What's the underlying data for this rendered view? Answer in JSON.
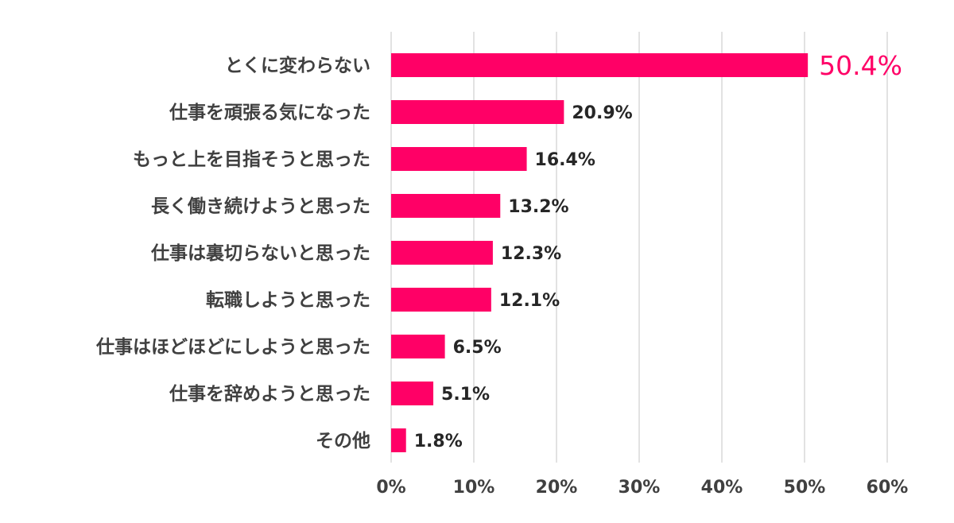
{
  "chart_data": {
    "type": "bar",
    "orientation": "horizontal",
    "categories": [
      "とくに変わらない",
      "仕事を頑張る気になった",
      "もっと上を目指そうと思った",
      "長く働き続けようと思った",
      "仕事は裏切らないと思った",
      "転職しようと思った",
      "仕事はほどほどにしようと思った",
      "仕事を辞めようと思った",
      "その他"
    ],
    "values": [
      50.4,
      20.9,
      16.4,
      13.2,
      12.3,
      12.1,
      6.5,
      5.1,
      1.8
    ],
    "value_labels": [
      "50.4%",
      "20.9%",
      "16.4%",
      "13.2%",
      "12.3%",
      "12.1%",
      "6.5%",
      "5.1%",
      "1.8%"
    ],
    "xlim": [
      0,
      60
    ],
    "x_ticks": [
      0,
      10,
      20,
      30,
      40,
      50,
      60
    ],
    "x_tick_labels": [
      "0%",
      "10%",
      "20%",
      "30%",
      "40%",
      "50%",
      "60%"
    ],
    "grid": "vertical",
    "legend": "none",
    "bar_color": "#ff0066",
    "highlight_label_color": "#ff0066",
    "highlight_index": 0
  }
}
